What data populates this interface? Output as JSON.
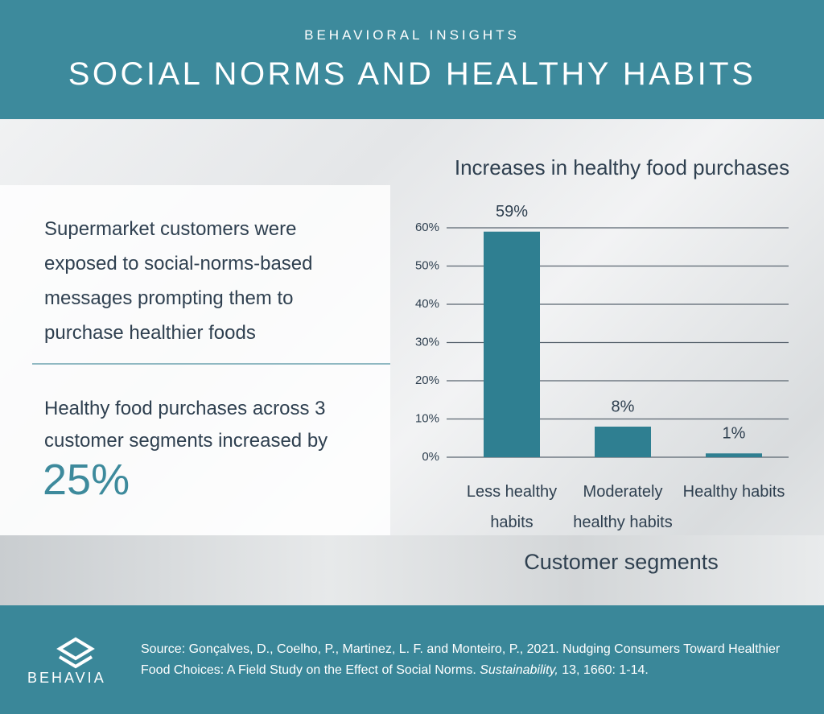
{
  "header": {
    "kicker": "BEHAVIORAL INSIGHTS",
    "title": "SOCIAL NORMS AND HEALTHY HABITS"
  },
  "summary": {
    "intro": "Supermarket customers were exposed to social-norms-based messages prompting them to purchase healthier foods",
    "result": "Healthy food purchases across 3 customer segments increased by",
    "highlight": "25%"
  },
  "chart_data": {
    "type": "bar",
    "title": "Increases in healthy food purchases",
    "x_label": "Customer segments",
    "categories": [
      "Less healthy habits",
      "Moderately healthy habits",
      "Healthy habits"
    ],
    "values": [
      59,
      8,
      1
    ],
    "value_labels": [
      "59%",
      "8%",
      "1%"
    ],
    "color": "#2f7f91",
    "ylim": [
      0,
      60
    ],
    "yticks": [
      {
        "value": 0,
        "label": "0%"
      },
      {
        "value": 10,
        "label": "10%"
      },
      {
        "value": 20,
        "label": "20%"
      },
      {
        "value": 30,
        "label": "30%"
      },
      {
        "value": 40,
        "label": "40%"
      },
      {
        "value": 50,
        "label": "50%"
      },
      {
        "value": 60,
        "label": "60%"
      }
    ],
    "grid": true
  },
  "footer": {
    "brand": "BEHAVIA",
    "source_before": "Source: Gonçalves, D., Coelho, P., Martinez, L. F. and Monteiro, P., 2021. Nudging Consumers Toward Healthier Food Choices: A Field Study on the Effect of Social Norms. ",
    "source_journal": "Sustainability,",
    "source_after": " 13, 1660: 1-14."
  }
}
